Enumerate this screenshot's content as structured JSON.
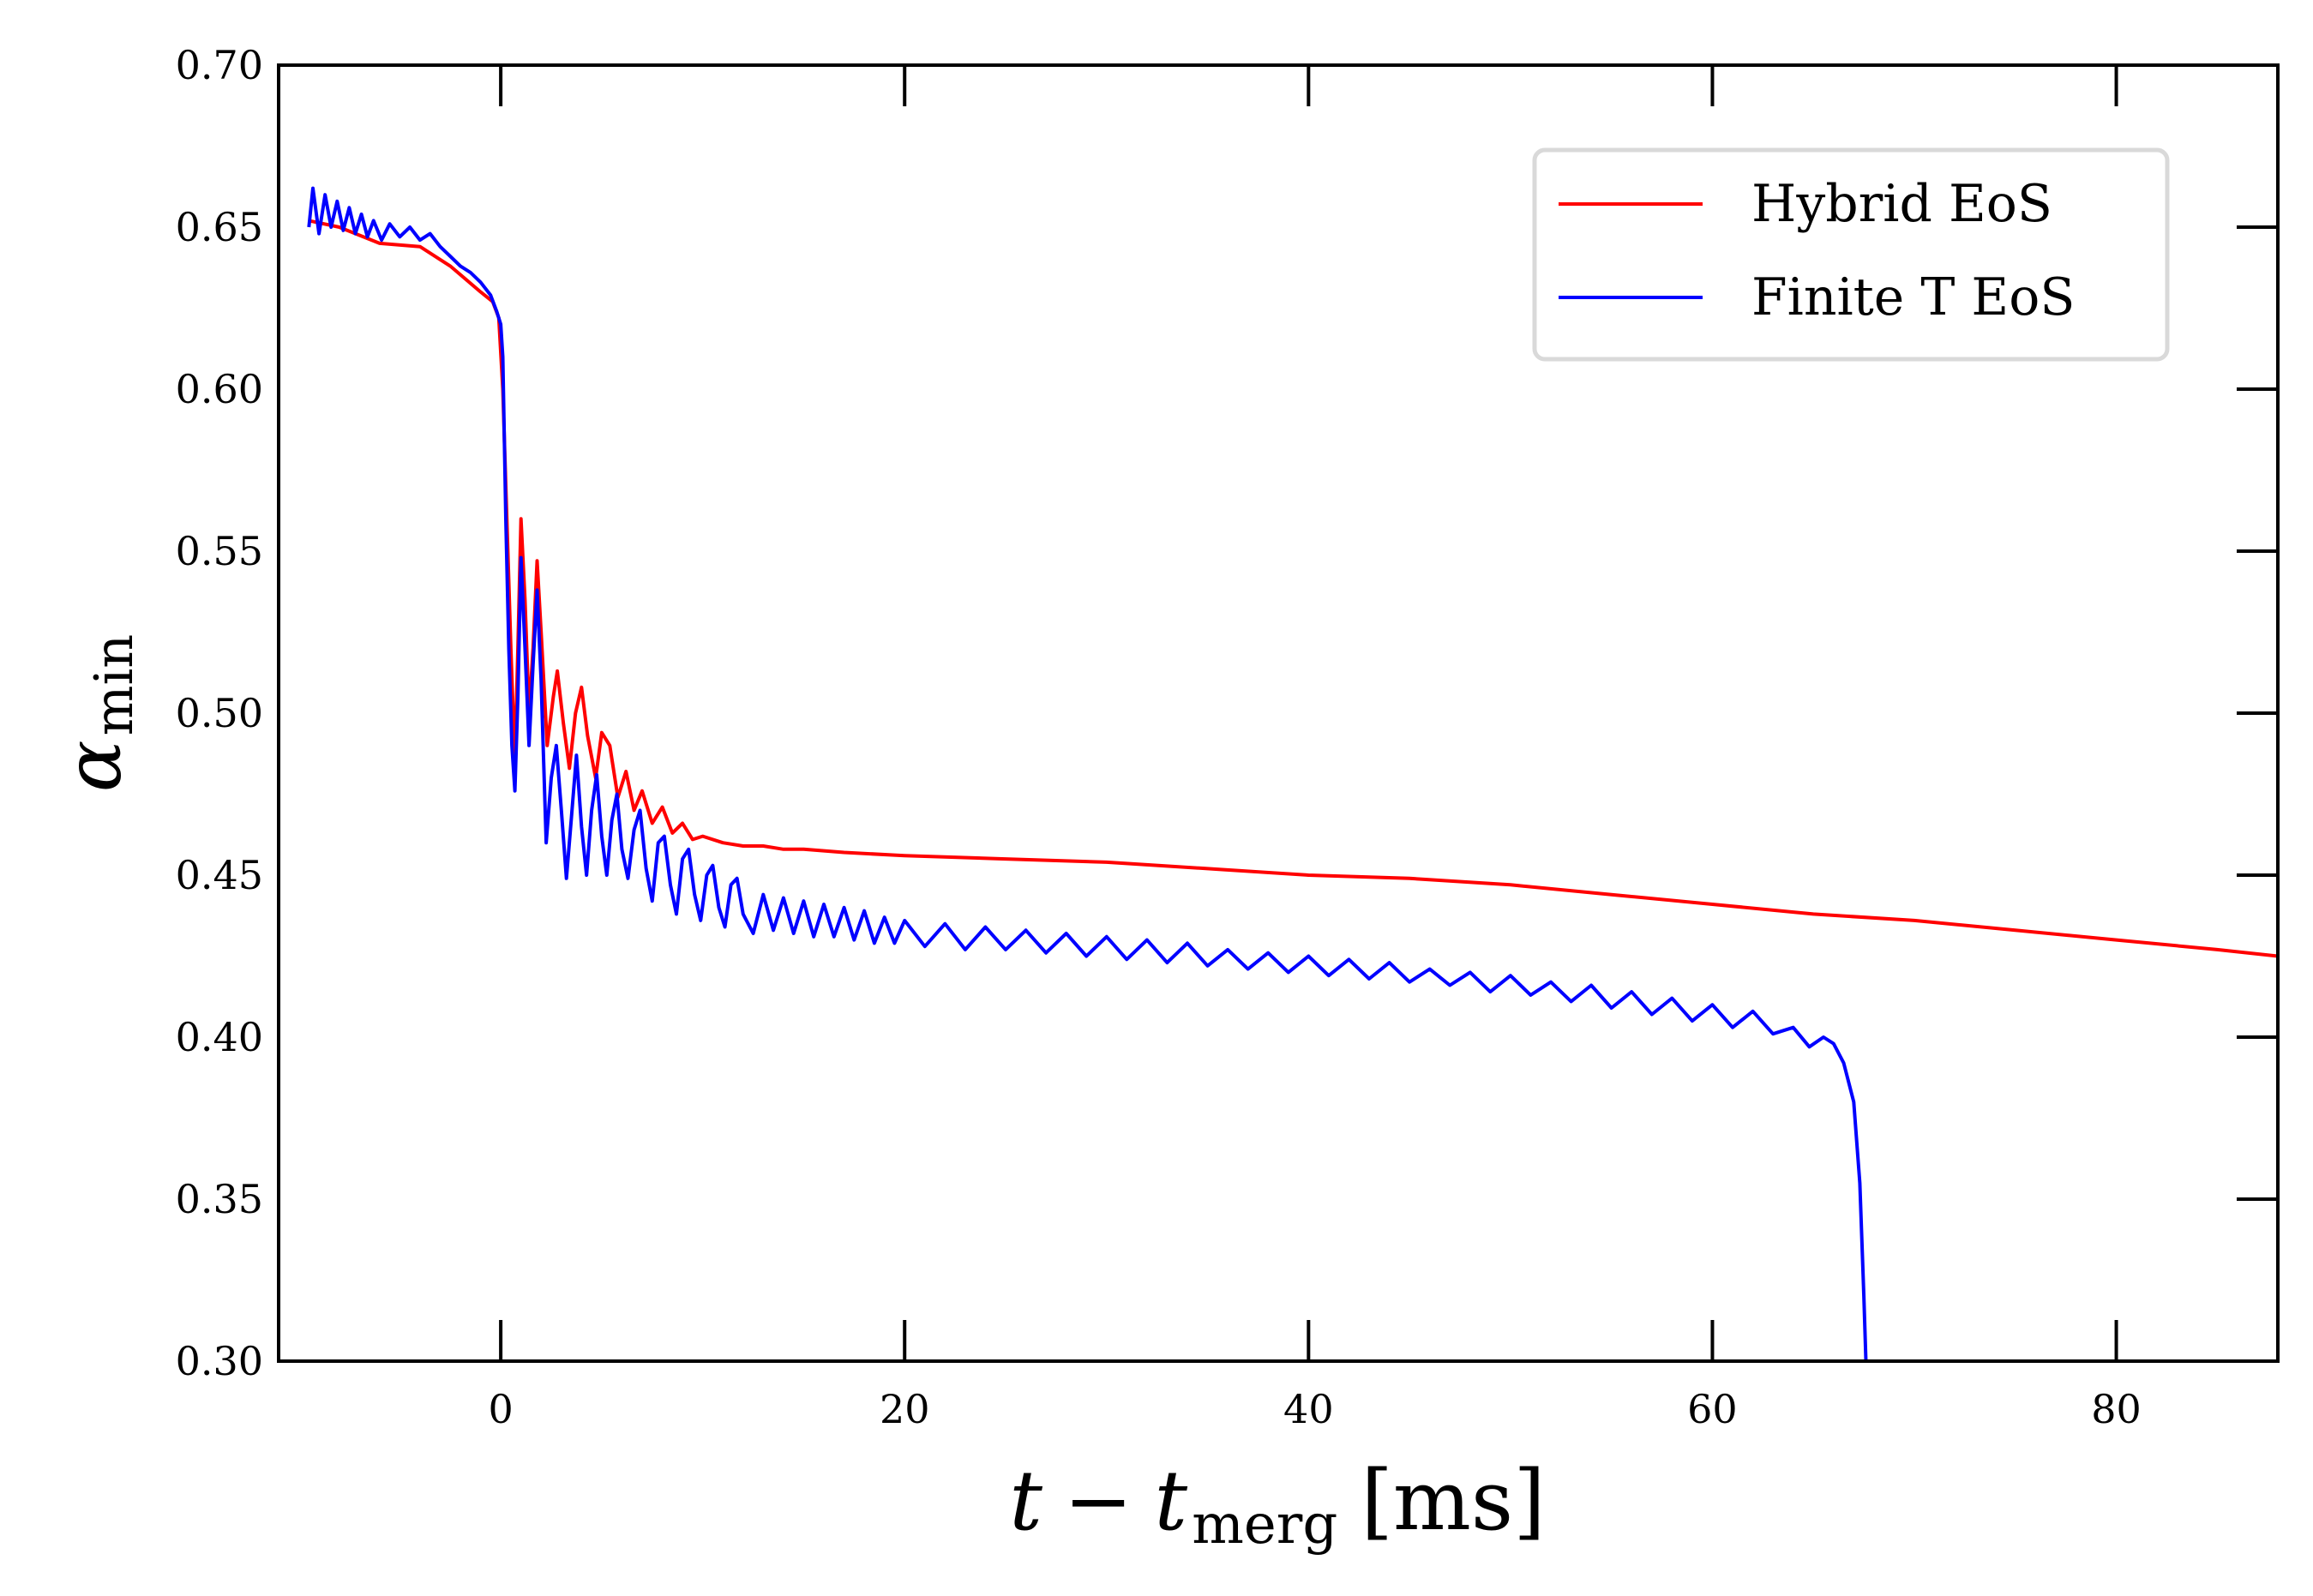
{
  "chart_data": {
    "type": "line",
    "xlabel": {
      "var": "t",
      "minus": "−",
      "var2": "t",
      "sub": "merg",
      "unit": "[ms]"
    },
    "ylabel": {
      "var": "α",
      "sub": "min"
    },
    "xlim": [
      -11,
      88
    ],
    "ylim": [
      0.3,
      0.7
    ],
    "x_ticks": [
      0,
      20,
      40,
      60,
      80
    ],
    "x_tick_labels": [
      "0",
      "20",
      "40",
      "60",
      "80"
    ],
    "y_ticks": [
      0.3,
      0.35,
      0.4,
      0.45,
      0.5,
      0.55,
      0.6,
      0.65,
      0.7
    ],
    "y_tick_labels": [
      "0.30",
      "0.35",
      "0.40",
      "0.45",
      "0.50",
      "0.55",
      "0.60",
      "0.65",
      "0.70"
    ],
    "grid": false,
    "legend_position": "top-right",
    "series": [
      {
        "name": "Hybrid EoS",
        "color": "#ff0000",
        "points": [
          [
            -9.5,
            0.652
          ],
          [
            -8,
            0.65
          ],
          [
            -6,
            0.645
          ],
          [
            -4,
            0.644
          ],
          [
            -2.5,
            0.638
          ],
          [
            -1,
            0.63
          ],
          [
            -0.4,
            0.627
          ],
          [
            -0.1,
            0.622
          ],
          [
            0.1,
            0.6
          ],
          [
            0.3,
            0.56
          ],
          [
            0.5,
            0.52
          ],
          [
            0.7,
            0.485
          ],
          [
            0.85,
            0.52
          ],
          [
            1.0,
            0.56
          ],
          [
            1.2,
            0.535
          ],
          [
            1.4,
            0.5
          ],
          [
            1.6,
            0.52
          ],
          [
            1.8,
            0.547
          ],
          [
            2.0,
            0.525
          ],
          [
            2.3,
            0.49
          ],
          [
            2.6,
            0.505
          ],
          [
            2.8,
            0.513
          ],
          [
            3.1,
            0.497
          ],
          [
            3.4,
            0.483
          ],
          [
            3.7,
            0.5
          ],
          [
            4.0,
            0.508
          ],
          [
            4.3,
            0.493
          ],
          [
            4.7,
            0.48
          ],
          [
            5.0,
            0.494
          ],
          [
            5.4,
            0.49
          ],
          [
            5.8,
            0.474
          ],
          [
            6.2,
            0.482
          ],
          [
            6.6,
            0.47
          ],
          [
            7.0,
            0.476
          ],
          [
            7.5,
            0.466
          ],
          [
            8.0,
            0.471
          ],
          [
            8.5,
            0.463
          ],
          [
            9.0,
            0.466
          ],
          [
            9.5,
            0.461
          ],
          [
            10,
            0.462
          ],
          [
            11,
            0.46
          ],
          [
            12,
            0.459
          ],
          [
            13,
            0.459
          ],
          [
            14,
            0.458
          ],
          [
            15,
            0.458
          ],
          [
            17,
            0.457
          ],
          [
            20,
            0.456
          ],
          [
            25,
            0.455
          ],
          [
            30,
            0.454
          ],
          [
            35,
            0.452
          ],
          [
            40,
            0.45
          ],
          [
            45,
            0.449
          ],
          [
            50,
            0.447
          ],
          [
            55,
            0.444
          ],
          [
            60,
            0.441
          ],
          [
            65,
            0.438
          ],
          [
            70,
            0.436
          ],
          [
            75,
            0.433
          ],
          [
            80,
            0.43
          ],
          [
            85,
            0.427
          ],
          [
            88,
            0.425
          ]
        ]
      },
      {
        "name": "Finite T EoS",
        "color": "#0000ff",
        "points": [
          [
            -9.5,
            0.65
          ],
          [
            -9.3,
            0.662
          ],
          [
            -9.0,
            0.648
          ],
          [
            -8.7,
            0.66
          ],
          [
            -8.4,
            0.65
          ],
          [
            -8.1,
            0.658
          ],
          [
            -7.8,
            0.649
          ],
          [
            -7.5,
            0.656
          ],
          [
            -7.2,
            0.648
          ],
          [
            -6.9,
            0.654
          ],
          [
            -6.6,
            0.647
          ],
          [
            -6.3,
            0.652
          ],
          [
            -5.9,
            0.646
          ],
          [
            -5.5,
            0.651
          ],
          [
            -5.0,
            0.647
          ],
          [
            -4.5,
            0.65
          ],
          [
            -4.0,
            0.646
          ],
          [
            -3.5,
            0.648
          ],
          [
            -3.0,
            0.644
          ],
          [
            -2.5,
            0.641
          ],
          [
            -2.0,
            0.638
          ],
          [
            -1.5,
            0.636
          ],
          [
            -1.0,
            0.633
          ],
          [
            -0.5,
            0.629
          ],
          [
            -0.2,
            0.624
          ],
          [
            0.0,
            0.62
          ],
          [
            0.1,
            0.61
          ],
          [
            0.25,
            0.56
          ],
          [
            0.4,
            0.52
          ],
          [
            0.55,
            0.49
          ],
          [
            0.7,
            0.476
          ],
          [
            0.85,
            0.505
          ],
          [
            1.0,
            0.548
          ],
          [
            1.2,
            0.52
          ],
          [
            1.4,
            0.49
          ],
          [
            1.6,
            0.515
          ],
          [
            1.8,
            0.538
          ],
          [
            2.0,
            0.51
          ],
          [
            2.25,
            0.46
          ],
          [
            2.5,
            0.48
          ],
          [
            2.75,
            0.49
          ],
          [
            3.0,
            0.47
          ],
          [
            3.25,
            0.449
          ],
          [
            3.5,
            0.468
          ],
          [
            3.75,
            0.487
          ],
          [
            4.0,
            0.465
          ],
          [
            4.25,
            0.45
          ],
          [
            4.5,
            0.47
          ],
          [
            4.75,
            0.481
          ],
          [
            5.0,
            0.462
          ],
          [
            5.25,
            0.45
          ],
          [
            5.5,
            0.467
          ],
          [
            5.75,
            0.475
          ],
          [
            6.0,
            0.458
          ],
          [
            6.3,
            0.449
          ],
          [
            6.6,
            0.464
          ],
          [
            6.9,
            0.47
          ],
          [
            7.2,
            0.452
          ],
          [
            7.5,
            0.442
          ],
          [
            7.8,
            0.46
          ],
          [
            8.1,
            0.462
          ],
          [
            8.4,
            0.447
          ],
          [
            8.7,
            0.438
          ],
          [
            9.0,
            0.455
          ],
          [
            9.3,
            0.458
          ],
          [
            9.6,
            0.444
          ],
          [
            9.9,
            0.436
          ],
          [
            10.2,
            0.45
          ],
          [
            10.5,
            0.453
          ],
          [
            10.8,
            0.44
          ],
          [
            11.1,
            0.434
          ],
          [
            11.4,
            0.447
          ],
          [
            11.7,
            0.449
          ],
          [
            12,
            0.438
          ],
          [
            12.5,
            0.432
          ],
          [
            13,
            0.444
          ],
          [
            13.5,
            0.433
          ],
          [
            14,
            0.443
          ],
          [
            14.5,
            0.432
          ],
          [
            15,
            0.442
          ],
          [
            15.5,
            0.431
          ],
          [
            16,
            0.441
          ],
          [
            16.5,
            0.431
          ],
          [
            17,
            0.44
          ],
          [
            17.5,
            0.43
          ],
          [
            18,
            0.439
          ],
          [
            18.5,
            0.429
          ],
          [
            19,
            0.437
          ],
          [
            19.5,
            0.429
          ],
          [
            20,
            0.436
          ],
          [
            21,
            0.428
          ],
          [
            22,
            0.435
          ],
          [
            23,
            0.427
          ],
          [
            24,
            0.434
          ],
          [
            25,
            0.427
          ],
          [
            26,
            0.433
          ],
          [
            27,
            0.426
          ],
          [
            28,
            0.432
          ],
          [
            29,
            0.425
          ],
          [
            30,
            0.431
          ],
          [
            31,
            0.424
          ],
          [
            32,
            0.43
          ],
          [
            33,
            0.423
          ],
          [
            34,
            0.429
          ],
          [
            35,
            0.422
          ],
          [
            36,
            0.427
          ],
          [
            37,
            0.421
          ],
          [
            38,
            0.426
          ],
          [
            39,
            0.42
          ],
          [
            40,
            0.425
          ],
          [
            41,
            0.419
          ],
          [
            42,
            0.424
          ],
          [
            43,
            0.418
          ],
          [
            44,
            0.423
          ],
          [
            45,
            0.417
          ],
          [
            46,
            0.421
          ],
          [
            47,
            0.416
          ],
          [
            48,
            0.42
          ],
          [
            49,
            0.414
          ],
          [
            50,
            0.419
          ],
          [
            51,
            0.413
          ],
          [
            52,
            0.417
          ],
          [
            53,
            0.411
          ],
          [
            54,
            0.416
          ],
          [
            55,
            0.409
          ],
          [
            56,
            0.414
          ],
          [
            57,
            0.407
          ],
          [
            58,
            0.412
          ],
          [
            59,
            0.405
          ],
          [
            60,
            0.41
          ],
          [
            61,
            0.403
          ],
          [
            62,
            0.408
          ],
          [
            63,
            0.401
          ],
          [
            64,
            0.403
          ],
          [
            64.8,
            0.397
          ],
          [
            65.5,
            0.4
          ],
          [
            66.0,
            0.398
          ],
          [
            66.5,
            0.392
          ],
          [
            67.0,
            0.38
          ],
          [
            67.3,
            0.355
          ],
          [
            67.5,
            0.32
          ],
          [
            67.6,
            0.3
          ]
        ]
      }
    ]
  }
}
